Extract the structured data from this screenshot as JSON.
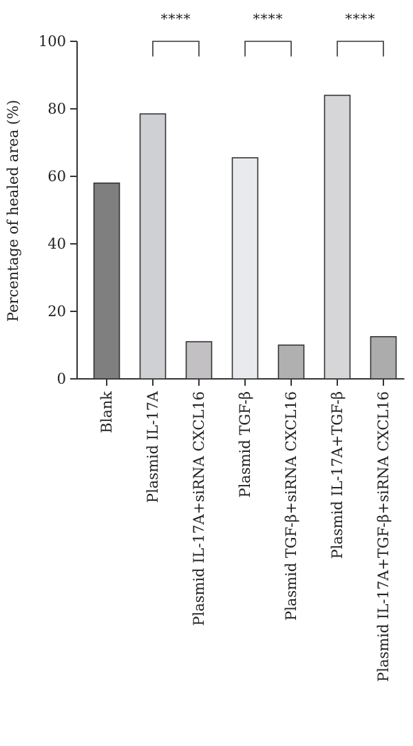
{
  "chart_data": {
    "type": "bar",
    "categories": [
      "Blank",
      "Plasmid IL-17A",
      "Plasmid IL-17A+siRNA CXCL16",
      "Plasmid TGF-β",
      "Plasmid TGF-β+siRNA CXCL16",
      "Plasmid IL-17A+TGF-β",
      "Plasmid IL-17A+TGF-β+siRNA CXCL16"
    ],
    "values": [
      58,
      78.5,
      11,
      65.5,
      10,
      84,
      12.5
    ],
    "bar_colors": [
      "#7f7f7f",
      "#cfd0d4",
      "#c2c0c2",
      "#e9eaed",
      "#b0b0b0",
      "#d6d6d9",
      "#acacac"
    ],
    "title": "",
    "xlabel": "",
    "ylabel": "Percentage of healed area (%)",
    "ylim": [
      0,
      100
    ],
    "yticks": [
      "0",
      "20",
      "40",
      "60",
      "80",
      "100"
    ],
    "grid": false,
    "annotations": [
      {
        "from": "Plasmid IL-17A",
        "to": "Plasmid IL-17A+siRNA CXCL16",
        "text": "****"
      },
      {
        "from": "Plasmid TGF-β",
        "to": "Plasmid TGF-β+siRNA CXCL16",
        "text": "****"
      },
      {
        "from": "Plasmid IL-17A+TGF-β",
        "to": "Plasmid IL-17A+TGF-β+siRNA CXCL16",
        "text": "****"
      }
    ]
  }
}
